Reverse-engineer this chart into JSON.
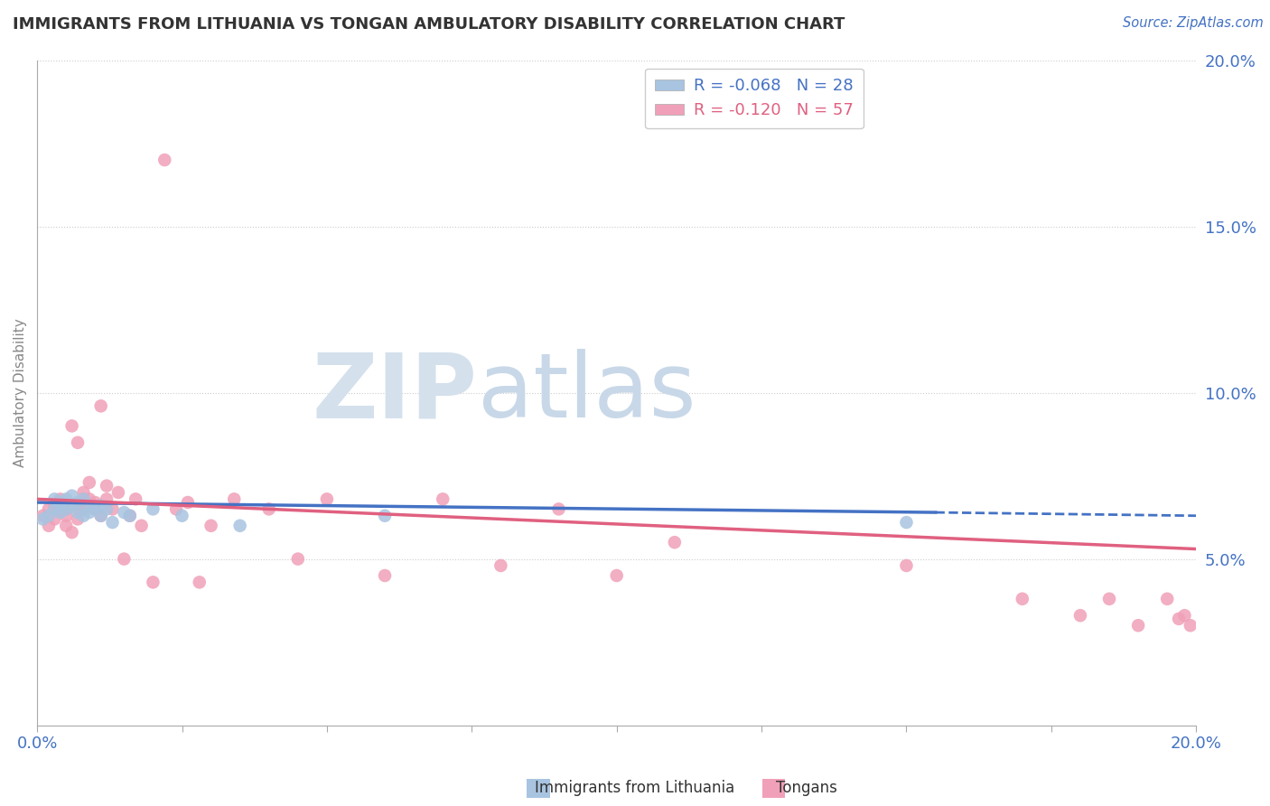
{
  "title": "IMMIGRANTS FROM LITHUANIA VS TONGAN AMBULATORY DISABILITY CORRELATION CHART",
  "source_text": "Source: ZipAtlas.com",
  "ylabel": "Ambulatory Disability",
  "xlim": [
    0.0,
    0.2
  ],
  "ylim": [
    0.0,
    0.2
  ],
  "xticks": [
    0.0,
    0.025,
    0.05,
    0.075,
    0.1,
    0.125,
    0.15,
    0.175,
    0.2
  ],
  "ytick_positions_right": [
    0.05,
    0.1,
    0.15,
    0.2
  ],
  "ytick_labels_right": [
    "5.0%",
    "10.0%",
    "15.0%",
    "20.0%"
  ],
  "r_blue": -0.068,
  "n_blue": 28,
  "r_pink": -0.12,
  "n_pink": 57,
  "blue_color": "#a8c4e0",
  "pink_color": "#f0a0b8",
  "blue_line_color": "#4472c4",
  "pink_line_color": "#e06080",
  "watermark_color": "#d4e0ec",
  "blue_scatter_x": [
    0.001,
    0.002,
    0.003,
    0.003,
    0.004,
    0.004,
    0.005,
    0.005,
    0.006,
    0.006,
    0.007,
    0.007,
    0.008,
    0.008,
    0.009,
    0.009,
    0.01,
    0.011,
    0.011,
    0.012,
    0.013,
    0.015,
    0.016,
    0.02,
    0.025,
    0.035,
    0.06,
    0.15
  ],
  "blue_scatter_y": [
    0.062,
    0.063,
    0.065,
    0.068,
    0.064,
    0.067,
    0.065,
    0.068,
    0.066,
    0.069,
    0.064,
    0.067,
    0.063,
    0.068,
    0.064,
    0.066,
    0.065,
    0.066,
    0.063,
    0.065,
    0.061,
    0.064,
    0.063,
    0.065,
    0.063,
    0.06,
    0.063,
    0.061
  ],
  "pink_scatter_x": [
    0.001,
    0.002,
    0.002,
    0.003,
    0.003,
    0.004,
    0.004,
    0.005,
    0.005,
    0.005,
    0.006,
    0.006,
    0.007,
    0.007,
    0.007,
    0.008,
    0.008,
    0.008,
    0.009,
    0.009,
    0.01,
    0.01,
    0.011,
    0.011,
    0.012,
    0.012,
    0.013,
    0.014,
    0.015,
    0.016,
    0.017,
    0.018,
    0.02,
    0.022,
    0.024,
    0.026,
    0.028,
    0.03,
    0.034,
    0.04,
    0.045,
    0.05,
    0.06,
    0.07,
    0.08,
    0.09,
    0.1,
    0.11,
    0.15,
    0.17,
    0.18,
    0.185,
    0.19,
    0.195,
    0.197,
    0.198,
    0.199
  ],
  "pink_scatter_y": [
    0.063,
    0.06,
    0.065,
    0.062,
    0.066,
    0.065,
    0.068,
    0.065,
    0.06,
    0.063,
    0.058,
    0.09,
    0.062,
    0.085,
    0.065,
    0.065,
    0.07,
    0.068,
    0.068,
    0.073,
    0.067,
    0.065,
    0.063,
    0.096,
    0.068,
    0.072,
    0.065,
    0.07,
    0.05,
    0.063,
    0.068,
    0.06,
    0.043,
    0.17,
    0.065,
    0.067,
    0.043,
    0.06,
    0.068,
    0.065,
    0.05,
    0.068,
    0.045,
    0.068,
    0.048,
    0.065,
    0.045,
    0.055,
    0.048,
    0.038,
    0.033,
    0.038,
    0.03,
    0.038,
    0.032,
    0.033,
    0.03
  ],
  "blue_line_x0": 0.0,
  "blue_line_x_solid_end": 0.155,
  "blue_line_x_dashed_end": 0.2,
  "blue_line_y0": 0.067,
  "blue_line_y_solid_end": 0.064,
  "blue_line_y_dashed_end": 0.063,
  "pink_line_x0": 0.0,
  "pink_line_x_end": 0.2,
  "pink_line_y0": 0.068,
  "pink_line_y_end": 0.053
}
